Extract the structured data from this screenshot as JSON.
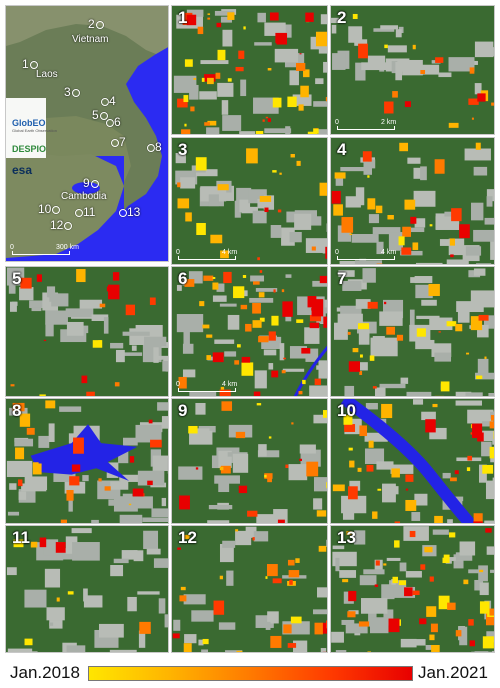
{
  "overview": {
    "countries": [
      {
        "name": "Vietnam"
      },
      {
        "name": "Laos"
      },
      {
        "name": "Cambodia"
      }
    ],
    "sites": [
      "1",
      "2",
      "3",
      "4",
      "5",
      "6",
      "7",
      "8",
      "9",
      "10",
      "11",
      "12",
      "13"
    ],
    "scale": {
      "start": "0",
      "end": "300 km"
    },
    "logos": [
      {
        "name": "GlobEO",
        "tagline": "Global Earth Observation",
        "color": "#1f5fae"
      },
      {
        "name": "DESPIO",
        "tagline": "",
        "color": "#2f8a3c"
      },
      {
        "name": "esa",
        "tagline": "",
        "color": "#0b2e5b"
      }
    ]
  },
  "panels": [
    {
      "id": "1",
      "scale": {
        "start": "",
        "end": ""
      }
    },
    {
      "id": "2",
      "scale": {
        "start": "0",
        "end": "2 km"
      }
    },
    {
      "id": "3",
      "scale": {
        "start": "0",
        "end": "4 km"
      }
    },
    {
      "id": "4",
      "scale": {
        "start": "0",
        "end": "4 km"
      }
    },
    {
      "id": "5",
      "scale": {
        "start": "",
        "end": ""
      }
    },
    {
      "id": "6",
      "scale": {
        "start": "0",
        "end": "4 km"
      }
    },
    {
      "id": "7",
      "scale": {
        "start": "",
        "end": ""
      }
    },
    {
      "id": "8",
      "scale": {
        "start": "",
        "end": ""
      }
    },
    {
      "id": "9",
      "scale": {
        "start": "",
        "end": ""
      }
    },
    {
      "id": "10",
      "scale": {
        "start": "",
        "end": ""
      }
    },
    {
      "id": "11",
      "scale": {
        "start": "",
        "end": ""
      }
    },
    {
      "id": "12",
      "scale": {
        "start": "",
        "end": ""
      }
    },
    {
      "id": "13",
      "scale": {
        "start": "",
        "end": ""
      }
    }
  ],
  "legend": {
    "start_label": "Jan.2018",
    "end_label": "Jan.2021",
    "colors": [
      "#ffe600",
      "#ffb400",
      "#ff7a00",
      "#ff3a00",
      "#e80000"
    ]
  },
  "palette": {
    "forest": "#3a6a31",
    "nonforest": "#a9afa9",
    "water": "#2323e6",
    "sea": "#2b2bf2"
  }
}
